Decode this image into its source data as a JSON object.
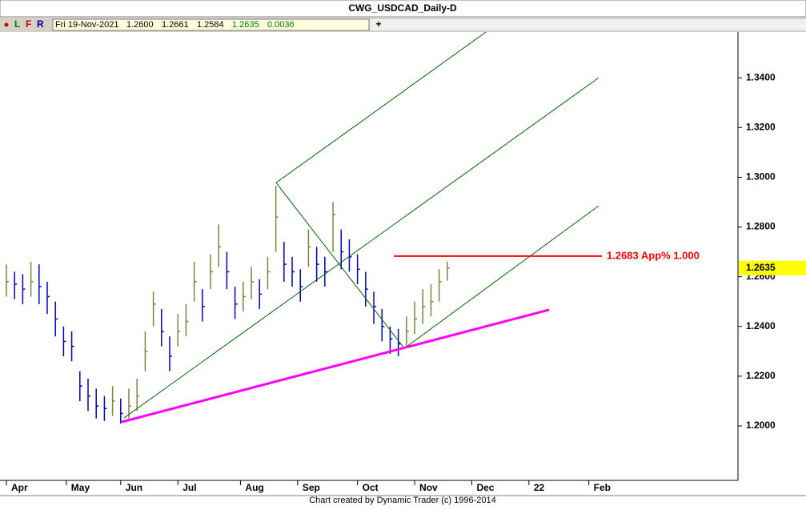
{
  "chart_data": {
    "type": "ohlc",
    "title": "CWG_USDCAD_Daily-D",
    "toolbar": {
      "buttons": [
        "L",
        "F",
        "R"
      ],
      "date": "Fri 19-Nov-2021",
      "open": "1.2600",
      "high": "1.2661",
      "low": "1.2584",
      "close": "1.2635",
      "change": "0.0036",
      "plus": "+"
    },
    "footer": "Chart created by Dynamic Trader  (c) 1996-2014",
    "up_color": "#808040",
    "down_color": "#0000c0",
    "x": [
      0,
      3,
      6,
      9,
      12,
      15,
      18,
      21,
      24,
      27,
      30,
      33,
      36,
      39,
      42,
      45,
      48,
      51,
      54,
      57,
      60,
      63,
      66,
      69,
      72,
      75,
      78,
      81,
      84,
      87,
      90,
      93,
      96,
      99,
      102,
      105,
      108,
      111,
      114,
      117,
      120,
      123,
      126,
      129,
      132,
      135,
      138,
      141,
      144,
      147,
      150,
      153,
      156,
      159,
      162
    ],
    "high": [
      1.265,
      1.262,
      1.261,
      1.266,
      1.265,
      1.258,
      1.25,
      1.24,
      1.238,
      1.222,
      1.219,
      1.215,
      1.212,
      1.216,
      1.211,
      1.215,
      1.219,
      1.238,
      1.254,
      1.247,
      1.236,
      1.245,
      1.249,
      1.266,
      1.255,
      1.269,
      1.281,
      1.27,
      1.256,
      1.258,
      1.264,
      1.259,
      1.268,
      1.2965,
      1.274,
      1.268,
      1.263,
      1.279,
      1.272,
      1.268,
      1.29,
      1.279,
      1.275,
      1.269,
      1.262,
      1.254,
      1.247,
      1.24,
      1.239,
      1.244,
      1.25,
      1.255,
      1.257,
      1.263,
      1.2661
    ],
    "low": [
      1.252,
      1.251,
      1.249,
      1.252,
      1.249,
      1.245,
      1.236,
      1.228,
      1.226,
      1.21,
      1.206,
      1.203,
      1.202,
      1.204,
      1.201,
      1.203,
      1.206,
      1.222,
      1.24,
      1.232,
      1.222,
      1.232,
      1.236,
      1.25,
      1.242,
      1.255,
      1.264,
      1.255,
      1.243,
      1.246,
      1.251,
      1.247,
      1.255,
      1.27,
      1.258,
      1.256,
      1.25,
      1.264,
      1.258,
      1.256,
      1.27,
      1.263,
      1.262,
      1.257,
      1.248,
      1.241,
      1.234,
      1.229,
      1.228,
      1.232,
      1.237,
      1.241,
      1.244,
      1.25,
      1.2584
    ],
    "close": [
      1.258,
      1.257,
      1.255,
      1.258,
      1.256,
      1.252,
      1.243,
      1.234,
      1.232,
      1.216,
      1.212,
      1.208,
      1.207,
      1.21,
      1.205,
      1.208,
      1.212,
      1.23,
      1.249,
      1.238,
      1.228,
      1.238,
      1.242,
      1.258,
      1.248,
      1.262,
      1.272,
      1.262,
      1.249,
      1.252,
      1.258,
      1.253,
      1.262,
      1.284,
      1.265,
      1.262,
      1.256,
      1.272,
      1.265,
      1.262,
      1.285,
      1.27,
      1.268,
      1.263,
      1.255,
      1.248,
      1.24,
      1.235,
      1.233,
      1.238,
      1.243,
      1.248,
      1.25,
      1.258,
      1.2635
    ],
    "xlim": [
      -2.35,
      268.8
    ],
    "ylim": [
      1.1781,
      1.3584
    ],
    "xticks": [
      {
        "value": 0,
        "label": "Apr"
      },
      {
        "value": 22,
        "label": "May"
      },
      {
        "value": 42,
        "label": "Jun"
      },
      {
        "value": 63,
        "label": "Jul"
      },
      {
        "value": 86,
        "label": "Aug"
      },
      {
        "value": 107,
        "label": "Sep"
      },
      {
        "value": 129,
        "label": "Oct"
      },
      {
        "value": 150,
        "label": "Nov"
      },
      {
        "value": 171,
        "label": "Dec"
      },
      {
        "value": 192,
        "label": "22"
      },
      {
        "value": 214,
        "label": "Feb"
      }
    ],
    "yticks": [
      {
        "value": 1.2,
        "label": "1.2000"
      },
      {
        "value": 1.22,
        "label": "1.2200"
      },
      {
        "value": 1.24,
        "label": "1.2400"
      },
      {
        "value": 1.26,
        "label": "1.2600"
      },
      {
        "value": 1.28,
        "label": "1.2800"
      },
      {
        "value": 1.3,
        "label": "1.3000"
      },
      {
        "value": 1.32,
        "label": "1.3200"
      },
      {
        "value": 1.34,
        "label": "1.3400"
      }
    ],
    "last_price": {
      "value": 1.2635,
      "label": "1.2635"
    },
    "lines": [
      {
        "color": "#006400",
        "width": 1,
        "x": [
          99.1,
          176.2
        ],
        "y": [
          1.2978,
          1.3584
        ]
      },
      {
        "color": "#006400",
        "width": 1,
        "x": [
          43.2,
          217.6
        ],
        "y": [
          1.2032,
          1.34
        ]
      },
      {
        "color": "#006400",
        "width": 1,
        "x": [
          146.2,
          217.6
        ],
        "y": [
          1.2312,
          1.2885
        ]
      },
      {
        "color": "#006400",
        "width": 1,
        "x": [
          99.1,
          146.2
        ],
        "y": [
          1.2978,
          1.2312
        ]
      },
      {
        "color": "#ff00ff",
        "width": 3,
        "x": [
          42.4,
          199.4
        ],
        "y": [
          1.2016,
          1.2467
        ]
      },
      {
        "color": "#ff0000",
        "width": 2,
        "x": [
          142.4,
          218.8
        ],
        "y": [
          1.2683,
          1.2683
        ],
        "label": "1.2683 App% 1.000"
      }
    ]
  }
}
